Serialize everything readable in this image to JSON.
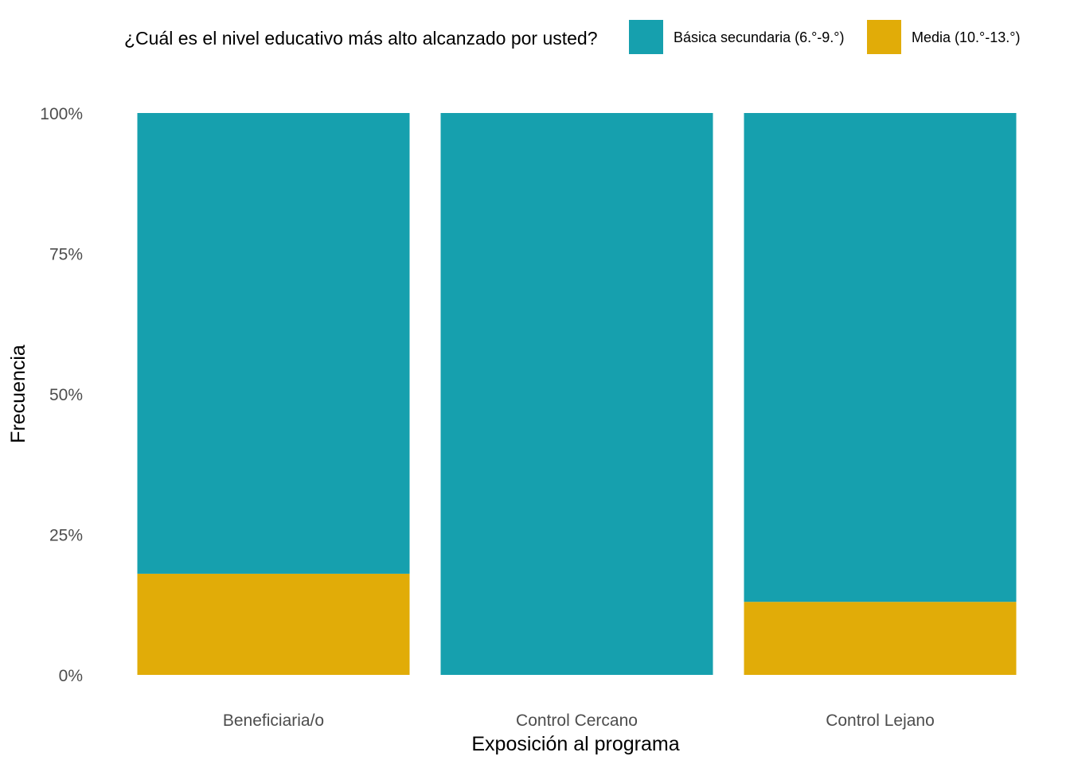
{
  "chart_data": {
    "type": "bar",
    "stacked": true,
    "normalized": true,
    "xlabel": "Exposición al programa",
    "ylabel": "Frecuencia",
    "ylim": [
      0,
      1
    ],
    "ytick_values": [
      0,
      0.25,
      0.5,
      0.75,
      1
    ],
    "ytick_labels": [
      "0%",
      "25%",
      "50%",
      "75%",
      "100%"
    ],
    "categories": [
      "Beneficiaria/o",
      "Control Cercano",
      "Control Lejano"
    ],
    "series": [
      {
        "name": "Media (10.°-13.°)",
        "color": "#E1AC08",
        "values": [
          0.18,
          0.0,
          0.13
        ]
      },
      {
        "name": "Básica secundaria (6.°-9.°)",
        "color": "#16A0AE",
        "values": [
          0.82,
          1.0,
          0.87
        ]
      }
    ],
    "legend": {
      "title": "¿Cuál es el nivel educativo más alto alcanzado por usted?",
      "position": "top",
      "entries": [
        {
          "label": "Básica secundaria (6.°-9.°)",
          "color": "#16A0AE"
        },
        {
          "label": "Media (10.°-13.°)",
          "color": "#E1AC08"
        }
      ]
    },
    "grid": false
  }
}
